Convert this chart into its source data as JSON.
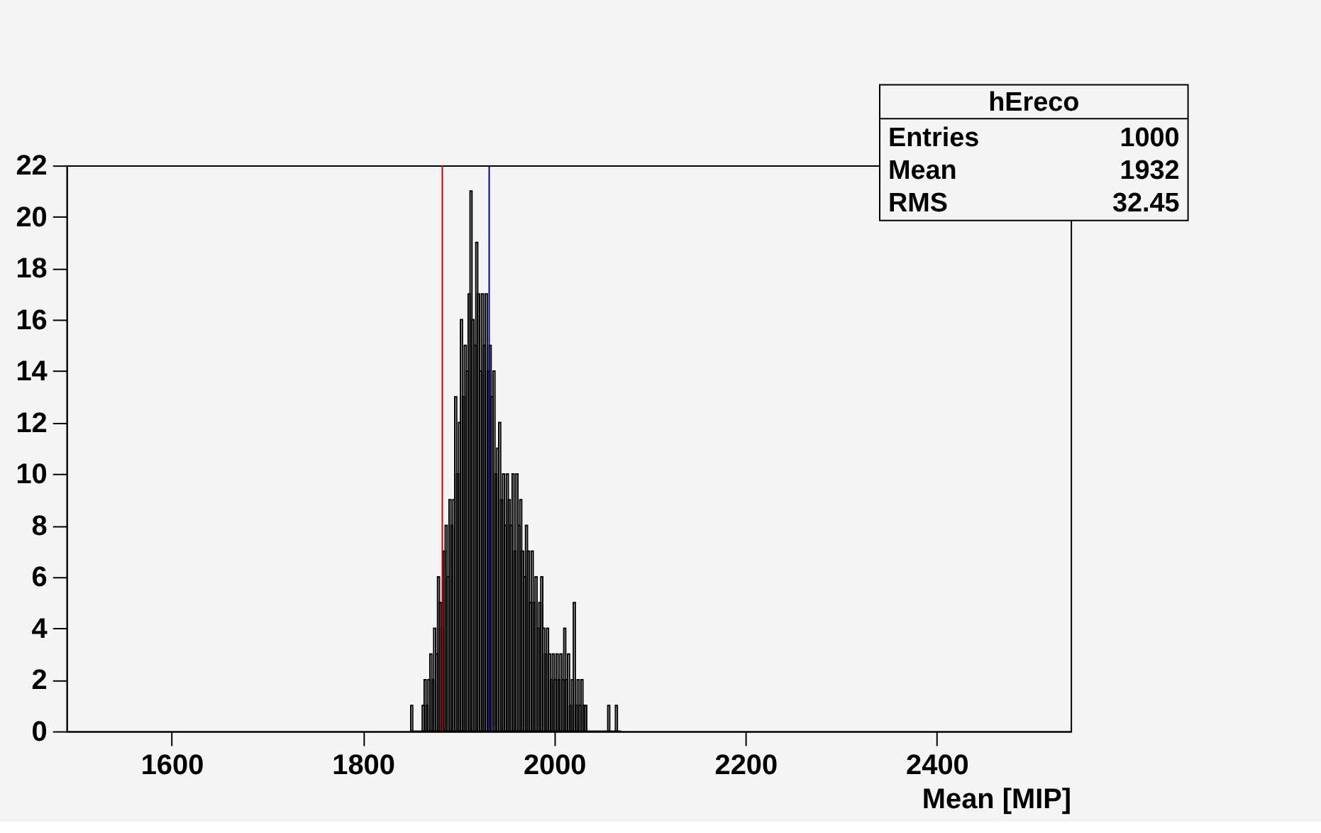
{
  "chart_data": {
    "type": "histogram",
    "xlabel": "Mean [MIP]",
    "bins": [
      1850,
      1852,
      1854,
      1856,
      1858,
      1860,
      1862,
      1864,
      1866,
      1868,
      1870,
      1872,
      1874,
      1876,
      1878,
      1880,
      1882,
      1884,
      1886,
      1888,
      1890,
      1892,
      1894,
      1896,
      1898,
      1900,
      1902,
      1904,
      1906,
      1908,
      1910,
      1912,
      1914,
      1916,
      1918,
      1920,
      1922,
      1924,
      1926,
      1928,
      1930,
      1932,
      1934,
      1936,
      1938,
      1940,
      1942,
      1944,
      1946,
      1948,
      1950,
      1952,
      1954,
      1956,
      1958,
      1960,
      1962,
      1964,
      1966,
      1968,
      1970,
      1972,
      1974,
      1976,
      1978,
      1980,
      1982,
      1984,
      1986,
      1988,
      1990,
      1992,
      1994,
      1996,
      1998,
      2000,
      2002,
      2004,
      2006,
      2008,
      2010,
      2012,
      2014,
      2016,
      2018,
      2020,
      2022,
      2024,
      2026,
      2028,
      2030,
      2032,
      2034,
      2036,
      2038,
      2040,
      2042,
      2044,
      2046,
      2048,
      2050,
      2052,
      2054,
      2056,
      2058,
      2060,
      2062,
      2064,
      2066,
      2068,
      2070
    ],
    "values": [
      1,
      0,
      0,
      0,
      0,
      0,
      1,
      2,
      1,
      2,
      3,
      2,
      4,
      3,
      6,
      5,
      4,
      7,
      8,
      6,
      9,
      8,
      9,
      13,
      10,
      12,
      16,
      13,
      15,
      14,
      17,
      21,
      16,
      15,
      19,
      17,
      14,
      17,
      15,
      17,
      14,
      15,
      13,
      14,
      10,
      11,
      12,
      9,
      10,
      8,
      10,
      9,
      8,
      10,
      7,
      10,
      8,
      9,
      7,
      6,
      8,
      7,
      5,
      7,
      5,
      6,
      4,
      5,
      6,
      4,
      3,
      4,
      3,
      2,
      3,
      2,
      3,
      2,
      3,
      2,
      4,
      2,
      3,
      1,
      2,
      5,
      1,
      2,
      1,
      2,
      1,
      1,
      0,
      0,
      0,
      0,
      0,
      0,
      0,
      0,
      0,
      0,
      0,
      1,
      0,
      0,
      0,
      1,
      0,
      0
    ],
    "color": "#000000",
    "xlim": [
      1490,
      2540
    ],
    "xticks": [
      1600,
      1800,
      2000,
      2200,
      2400
    ],
    "ylim": [
      0,
      22
    ],
    "yticks": [
      0,
      2,
      4,
      6,
      8,
      10,
      12,
      14,
      16,
      18,
      20,
      22
    ],
    "ref_lines": [
      {
        "axis": "x",
        "value": 1883,
        "color": "#cc0000"
      },
      {
        "axis": "x",
        "value": 1932,
        "color": "#000099"
      }
    ],
    "annotations": [
      "hEreco",
      "Entries",
      "1000",
      "Mean",
      "1932",
      "RMS",
      "32.45"
    ],
    "grid": false
  }
}
